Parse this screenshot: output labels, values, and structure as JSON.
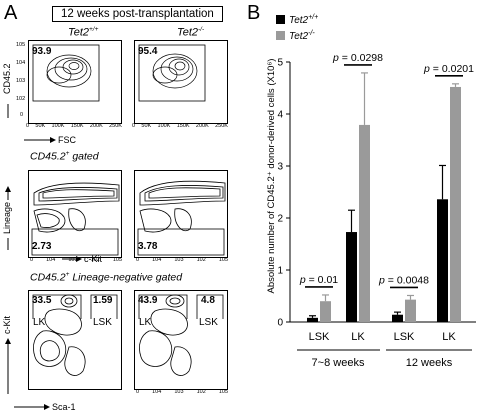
{
  "panel_a": {
    "letter": "A",
    "header": "12 weeks post-transplantation",
    "col_labels": [
      {
        "base": "Tet2",
        "sup": "+/+"
      },
      {
        "base": "Tet2",
        "sup": "-/-"
      }
    ],
    "row1": {
      "y_axis": "CD45.2",
      "x_axis": "FSC",
      "x_ticks": [
        "0",
        "50K",
        "100K",
        "150K",
        "200K",
        "250K"
      ],
      "y_ticks": [
        "0",
        "10",
        "10",
        "10",
        "10",
        "10"
      ],
      "y_tick_exps": [
        "",
        "2",
        "3",
        "4",
        "5",
        ""
      ],
      "percents": [
        "93.9",
        "95.4"
      ]
    },
    "row2": {
      "gate_title": "CD45.2",
      "gate_suffix": " gated",
      "y_axis": "Lineage",
      "x_axis": "c-Kit",
      "percents": [
        "2.73",
        "3.78"
      ]
    },
    "row3": {
      "gate_title": "CD45.2",
      "gate_suffix": " Lineage-negative gated",
      "y_axis": "c-Kit",
      "x_axis": "Sca-1",
      "percents_lk": [
        "33.5",
        "43.9"
      ],
      "percents_lsk": [
        "1.59",
        "4.8"
      ],
      "gate_lk": "LK",
      "gate_lsk": "LSK"
    },
    "log_ticks": [
      "0",
      "10",
      "10",
      "10",
      "10"
    ],
    "log_exps": [
      "",
      "2",
      "3",
      "4",
      "5"
    ]
  },
  "panel_b": {
    "letter": "B",
    "legend": [
      {
        "base": "Tet2",
        "sup": "+/+",
        "color": "#000000"
      },
      {
        "base": "Tet2",
        "sup": "-/-",
        "color": "#9a9a9a"
      }
    ],
    "y_axis_label": "Absolute number of CD45.2⁺ donor-derived cells (X10⁶)",
    "y_ticks": [
      "0",
      "1",
      "2",
      "3",
      "4",
      "5"
    ],
    "p_values": [
      "p = 0.01",
      "p = 0.0298",
      "p = 0.0048",
      "p = 0.0201"
    ],
    "group_labels": [
      "7~8 weeks",
      "12 weeks"
    ]
  },
  "chart_data": {
    "type": "bar",
    "categories": [
      "LSK",
      "LK",
      "LSK",
      "LK"
    ],
    "groups": [
      "7~8 weeks",
      "7~8 weeks",
      "12 weeks",
      "12 weeks"
    ],
    "series": [
      {
        "name": "Tet2+/+",
        "values": [
          0.08,
          1.73,
          0.14,
          2.36
        ],
        "errors": [
          0.04,
          0.42,
          0.05,
          0.65
        ]
      },
      {
        "name": "Tet2-/-",
        "values": [
          0.4,
          3.79,
          0.43,
          4.52
        ],
        "errors": [
          0.12,
          1.0,
          0.08,
          0.06
        ]
      }
    ],
    "ylabel": "Absolute number of CD45.2⁺ donor-derived cells (X10⁶)",
    "ylim": [
      0,
      5
    ],
    "grid": false,
    "legend": "top-left"
  }
}
